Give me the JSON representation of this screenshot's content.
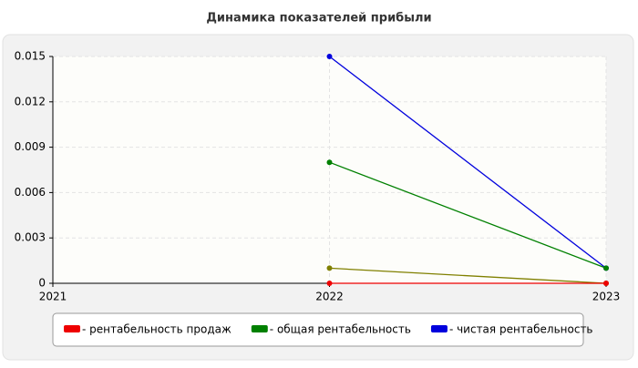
{
  "chart_data": {
    "type": "line",
    "title": "Динамика показателей прибыли",
    "x": [
      2021,
      2022,
      2023
    ],
    "xlim": [
      2021,
      2023
    ],
    "xticks": [
      2021,
      2022,
      2023
    ],
    "ylim": [
      0,
      0.015
    ],
    "yticks": [
      0,
      0.003,
      0.006,
      0.009,
      0.012,
      0.015
    ],
    "grid": true,
    "legend": "bottom",
    "series": [
      {
        "name": "- рентабельность продаж",
        "color": "#ee0000",
        "values": [
          null,
          0,
          0
        ]
      },
      {
        "name": "- общая рентабельность",
        "color": "#008000",
        "values": [
          null,
          0.008,
          0.001
        ]
      },
      {
        "name": "- чистая рентабельность",
        "color": "#0000dd",
        "values": [
          null,
          0.015,
          0.001
        ]
      },
      {
        "color": "#808000",
        "values": [
          null,
          0.001,
          0
        ]
      }
    ]
  }
}
